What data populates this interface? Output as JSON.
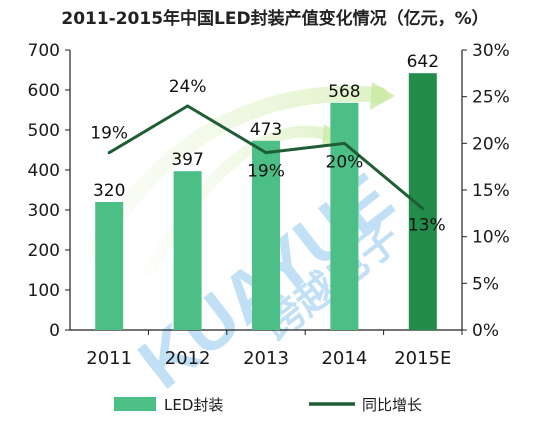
{
  "chart_data": {
    "type": "bar",
    "title": "2011-2015年中国LED封装产值变化情况（亿元，%）",
    "categories": [
      "2011",
      "2012",
      "2013",
      "2014",
      "2015E"
    ],
    "series": [
      {
        "name": "LED封装",
        "type": "bar",
        "axis": "left",
        "values": [
          320,
          397,
          473,
          568,
          642
        ],
        "labels": [
          "320",
          "397",
          "473",
          "568",
          "642"
        ],
        "colors": [
          "#4cbf86",
          "#4cbf86",
          "#4cbf86",
          "#4cbf86",
          "#238c4a"
        ]
      },
      {
        "name": "同比增长",
        "type": "line",
        "axis": "right",
        "values": [
          19,
          24,
          19,
          20,
          13
        ],
        "labels": [
          "19%",
          "24%",
          "19%",
          "20%",
          "13%"
        ],
        "color": "#1f5e35"
      }
    ],
    "y_left": {
      "range": [
        0,
        700
      ],
      "ticks": [
        "0",
        "100",
        "200",
        "300",
        "400",
        "500",
        "600",
        "700"
      ]
    },
    "y_right": {
      "range": [
        0,
        30
      ],
      "ticks": [
        "0%",
        "5%",
        "10%",
        "15%",
        "20%",
        "25%",
        "30%"
      ]
    },
    "grid": false,
    "legend_position": "bottom",
    "watermark": "KUAYUE 跨越电子"
  }
}
